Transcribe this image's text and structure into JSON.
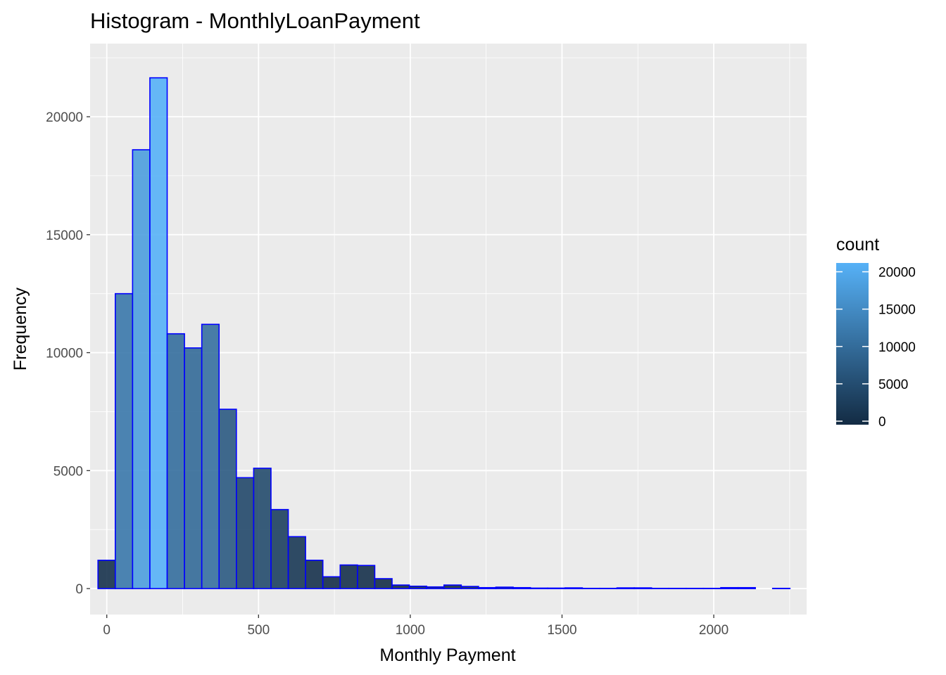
{
  "chart_data": {
    "type": "bar",
    "title": "Histogram - MonthlyLoanPayment",
    "xlabel": "Monthly Payment",
    "ylabel": "Frequency",
    "bin_width": 57,
    "x_start": -29,
    "xlim": [
      -29,
      2280
    ],
    "ylim": [
      0,
      22000
    ],
    "x_ticks": [
      0,
      500,
      1000,
      1500,
      2000
    ],
    "x_tick_labels": [
      "0",
      "500",
      "1000",
      "1500",
      "2000"
    ],
    "y_ticks": [
      0,
      5000,
      10000,
      15000,
      20000
    ],
    "y_tick_labels": [
      "0",
      "5000",
      "10000",
      "15000",
      "20000"
    ],
    "counts": [
      1200,
      12500,
      18600,
      21650,
      10800,
      10200,
      11200,
      7600,
      4700,
      5100,
      3350,
      2200,
      1200,
      500,
      1000,
      980,
      420,
      150,
      100,
      70,
      150,
      90,
      40,
      60,
      40,
      20,
      20,
      30,
      10,
      10,
      30,
      30,
      10,
      10,
      10,
      10,
      40,
      40,
      0,
      10
    ],
    "grid": true,
    "legend": {
      "title": "count",
      "position": "right",
      "ticks": [
        0,
        5000,
        10000,
        15000,
        20000
      ],
      "tick_labels": [
        "0",
        "5000",
        "10000",
        "15000",
        "20000"
      ],
      "min": 0,
      "max": 21650
    },
    "colors": {
      "panel_bg": "#ebebeb",
      "grid": "#ffffff",
      "bar_outline": "#0000ff",
      "low": "#132b43",
      "high": "#56b1f7",
      "fill_alpha": 0.9
    }
  }
}
